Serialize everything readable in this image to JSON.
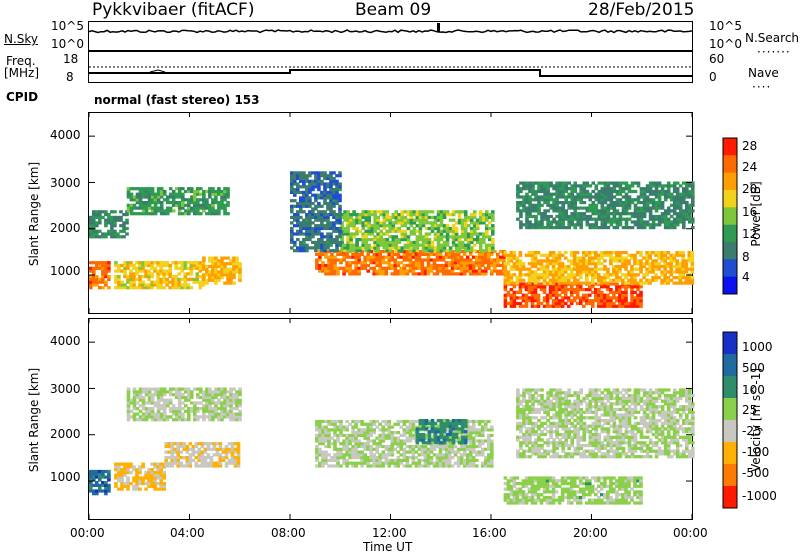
{
  "header": {
    "radar": "Pykkvibaer (fitACF)",
    "beam": "Beam 09",
    "date": "28/Feb/2015"
  },
  "strip": {
    "nsky_label": "N.Sky",
    "nsky_ticks": [
      "10^5",
      "10^0"
    ],
    "nsearch_ticks": [
      "10^5",
      "10^0"
    ],
    "nsearch_label": "N.Search",
    "freq_label_1": "Freq.",
    "freq_label_2": "[MHz]",
    "freq_ticks": [
      "18",
      "8"
    ],
    "nave_ticks": [
      "60",
      "0"
    ],
    "nave_label": "Nave",
    "cpid_label": "CPID",
    "cpid_value": "normal (fast stereo) 153"
  },
  "axes": {
    "ylabel": "Slant Range [km]",
    "yticks": [
      "4000",
      "3000",
      "2000",
      "1000"
    ],
    "xticks": [
      "00:00",
      "04:00",
      "08:00",
      "12:00",
      "16:00",
      "20:00",
      "00:00"
    ],
    "xlabel": "Time UT"
  },
  "colorbar_power": {
    "label": "Power [dB]",
    "ticks": [
      "28",
      "24",
      "20",
      "16",
      "12",
      "8",
      "4"
    ],
    "colors": [
      "#ff1a00",
      "#ff6a00",
      "#ff9e00",
      "#f2d21a",
      "#7dc83a",
      "#2e9a52",
      "#3a7d6e",
      "#1f4fd0",
      "#0a10f0"
    ]
  },
  "colorbar_velocity": {
    "label": "Velocity [m s^-1]",
    "ticks": [
      "1000",
      "500",
      "100",
      "25",
      "-25",
      "-100",
      "-500",
      "-1000"
    ],
    "colors": [
      "#1830c8",
      "#1f6a9e",
      "#2e8e6a",
      "#8ad04a",
      "#c8c8c0",
      "#ffb000",
      "#ff7a00",
      "#ff1a00"
    ]
  },
  "chart_data": [
    {
      "type": "heatmap",
      "title": "Power [dB]",
      "xlabel": "Time UT",
      "ylabel": "Slant Range [km]",
      "xlim": [
        0,
        24
      ],
      "ylim": [
        180,
        4500
      ],
      "clim": [
        0,
        32
      ],
      "regions": [
        {
          "t": [
            0,
            0.8
          ],
          "r": [
            700,
            1300
          ],
          "v": 26
        },
        {
          "t": [
            1,
            4.5
          ],
          "r": [
            700,
            1300
          ],
          "v": 20
        },
        {
          "t": [
            4.5,
            6
          ],
          "r": [
            800,
            1400
          ],
          "v": 22
        },
        {
          "t": [
            0,
            1.5
          ],
          "r": [
            1800,
            2400
          ],
          "v": 10
        },
        {
          "t": [
            1.5,
            5.5
          ],
          "r": [
            2300,
            2900
          ],
          "v": 12
        },
        {
          "t": [
            9,
            16.5
          ],
          "r": [
            1000,
            1500
          ],
          "v": 26
        },
        {
          "t": [
            10,
            16
          ],
          "r": [
            1500,
            2400
          ],
          "v": 16
        },
        {
          "t": [
            8,
            10
          ],
          "r": [
            1500,
            3200
          ],
          "v": 8
        },
        {
          "t": [
            16.5,
            22
          ],
          "r": [
            300,
            800
          ],
          "v": 28
        },
        {
          "t": [
            16.5,
            24
          ],
          "r": [
            800,
            1500
          ],
          "v": 22
        },
        {
          "t": [
            17,
            24
          ],
          "r": [
            2000,
            3000
          ],
          "v": 10
        }
      ]
    },
    {
      "type": "heatmap",
      "title": "Velocity [m s^-1]",
      "xlabel": "Time UT",
      "ylabel": "Slant Range [km]",
      "xlim": [
        0,
        24
      ],
      "ylim": [
        180,
        4500
      ],
      "clim": [
        -1000,
        1000
      ],
      "regions": [
        {
          "t": [
            0,
            0.8
          ],
          "r": [
            700,
            1200
          ],
          "v": 600
        },
        {
          "t": [
            1,
            3
          ],
          "r": [
            800,
            1400
          ],
          "v": -300
        },
        {
          "t": [
            3,
            6
          ],
          "r": [
            1300,
            1800
          ],
          "v": -200
        },
        {
          "t": [
            1.5,
            6
          ],
          "r": [
            2300,
            3000
          ],
          "v": 0
        },
        {
          "t": [
            9,
            16
          ],
          "r": [
            1300,
            2300
          ],
          "v": 0
        },
        {
          "t": [
            13,
            15
          ],
          "r": [
            1800,
            2300
          ],
          "v": 400
        },
        {
          "t": [
            16.5,
            22
          ],
          "r": [
            500,
            1100
          ],
          "v": 80
        },
        {
          "t": [
            17,
            24
          ],
          "r": [
            1500,
            3000
          ],
          "v": 0
        }
      ]
    }
  ]
}
